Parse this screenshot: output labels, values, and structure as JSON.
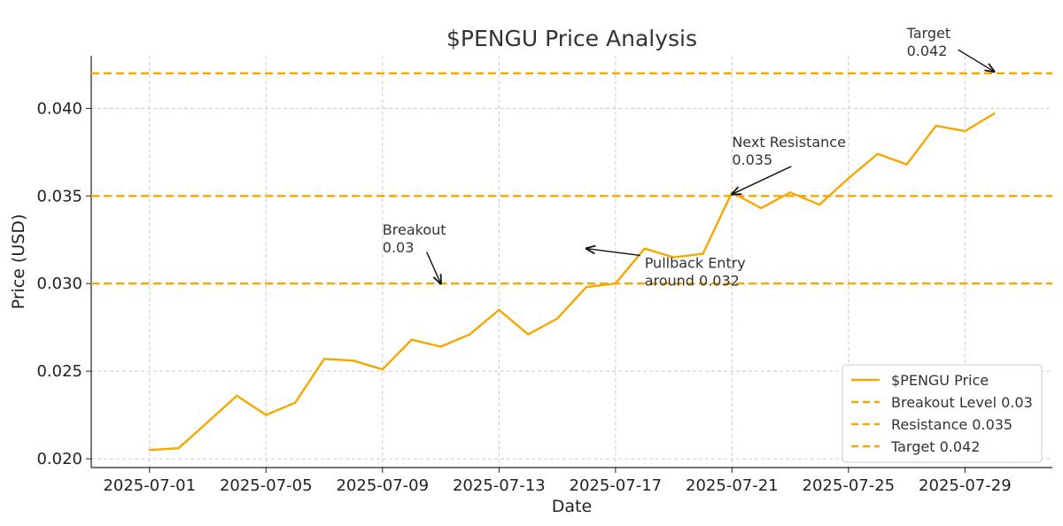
{
  "chart_data": {
    "type": "line",
    "title": "$PENGU Price Analysis",
    "xlabel": "Date",
    "ylabel": "Price (USD)",
    "grid": true,
    "legend_position": "bottom-right",
    "xlim": [
      "2025-06-29",
      "2025-08-01"
    ],
    "ylim": [
      0.0195,
      0.043
    ],
    "x_ticks": [
      "2025-07-01",
      "2025-07-05",
      "2025-07-09",
      "2025-07-13",
      "2025-07-17",
      "2025-07-21",
      "2025-07-25",
      "2025-07-29"
    ],
    "y_ticks": [
      0.02,
      0.025,
      0.03,
      0.035,
      0.04
    ],
    "y_tick_labels": [
      "0.020",
      "0.025",
      "0.030",
      "0.035",
      "0.040"
    ],
    "series": [
      {
        "name": "$PENGU Price",
        "color": "#f5a800",
        "style": "solid",
        "x": [
          "2025-07-01",
          "2025-07-02",
          "2025-07-03",
          "2025-07-04",
          "2025-07-05",
          "2025-07-06",
          "2025-07-07",
          "2025-07-08",
          "2025-07-09",
          "2025-07-10",
          "2025-07-11",
          "2025-07-12",
          "2025-07-13",
          "2025-07-14",
          "2025-07-15",
          "2025-07-16",
          "2025-07-17",
          "2025-07-18",
          "2025-07-19",
          "2025-07-20",
          "2025-07-21",
          "2025-07-22",
          "2025-07-23",
          "2025-07-24",
          "2025-07-25",
          "2025-07-26",
          "2025-07-27",
          "2025-07-28",
          "2025-07-29",
          "2025-07-30"
        ],
        "values": [
          0.0205,
          0.0206,
          0.0221,
          0.0236,
          0.0225,
          0.0232,
          0.0257,
          0.0256,
          0.0251,
          0.0268,
          0.0264,
          0.0271,
          0.0285,
          0.0271,
          0.028,
          0.0298,
          0.03,
          0.032,
          0.0315,
          0.0317,
          0.0352,
          0.0343,
          0.0352,
          0.0345,
          0.036,
          0.0374,
          0.0368,
          0.039,
          0.0387,
          0.0397
        ]
      }
    ],
    "reference_lines": [
      {
        "name": "Breakout Level 0.03",
        "value": 0.03,
        "color": "#f5a800",
        "style": "dashed"
      },
      {
        "name": "Resistance 0.035",
        "value": 0.035,
        "color": "#f5a800",
        "style": "dashed"
      },
      {
        "name": "Target 0.042",
        "value": 0.042,
        "color": "#f5a800",
        "style": "dashed"
      }
    ],
    "annotations": [
      {
        "id": "breakout",
        "lines": [
          "Breakout",
          "0.03"
        ],
        "point": [
          "2025-07-11",
          0.03
        ],
        "text_at": [
          "2025-07-09",
          0.0328
        ]
      },
      {
        "id": "pullback",
        "lines": [
          "Pullback Entry",
          "around 0.032"
        ],
        "point": [
          "2025-07-16",
          0.032
        ],
        "text_at": [
          "2025-07-18",
          0.0309
        ]
      },
      {
        "id": "resistance",
        "lines": [
          "Next Resistance",
          "0.035"
        ],
        "point": [
          "2025-07-21",
          0.0351
        ],
        "text_at": [
          "2025-07-21",
          0.0378
        ]
      },
      {
        "id": "target",
        "lines": [
          "Target",
          "0.042"
        ],
        "point": [
          "2025-07-30",
          0.0421
        ],
        "text_at": [
          "2025-07-27",
          0.044
        ]
      }
    ],
    "legend": [
      "$PENGU Price",
      "Breakout Level 0.03",
      "Resistance 0.035",
      "Target 0.042"
    ]
  }
}
